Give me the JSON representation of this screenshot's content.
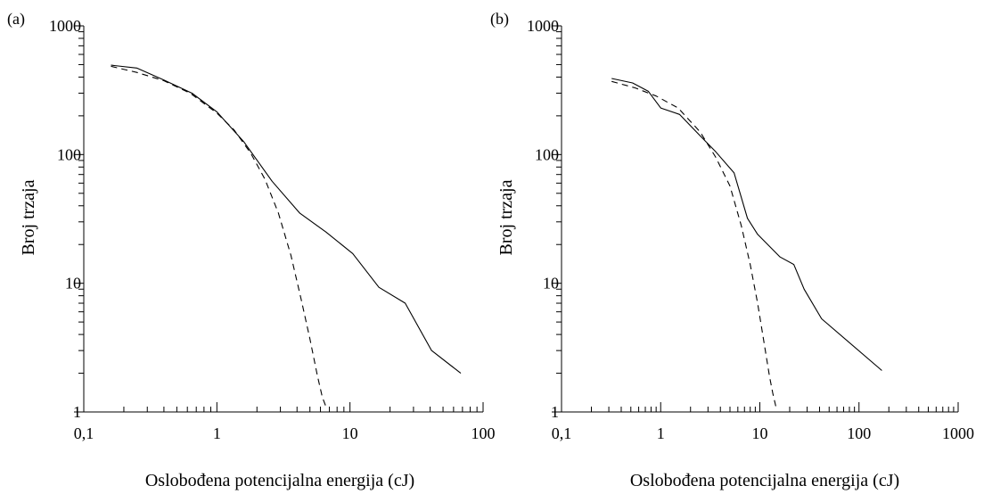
{
  "figure": {
    "ylabel": "Broj trzaja",
    "xlabel": "Oslobođena potencijalna energija (cJ)"
  },
  "colors": {
    "line": "#000000",
    "background": "#ffffff"
  },
  "chart_data": [
    {
      "type": "line",
      "panel_label": "(a)",
      "xlabel": "Oslobođena potencijalna energija (cJ)",
      "ylabel": "Broj trzaja",
      "xscale": "log",
      "yscale": "log",
      "xlim": [
        0.1,
        100
      ],
      "ylim": [
        1,
        1000
      ],
      "x_ticks": [
        0.1,
        1,
        10,
        100
      ],
      "x_tick_labels": [
        "0,1",
        "1",
        "10",
        "100"
      ],
      "y_ticks": [
        1,
        10,
        100,
        1000
      ],
      "y_tick_labels": [
        "1",
        "10",
        "100",
        "1000"
      ],
      "grid": false,
      "legend": "none",
      "series": [
        {
          "style": "solid",
          "x": [
            0.16,
            0.25,
            0.4,
            0.65,
            1.0,
            1.6,
            2.6,
            4.2,
            6.6,
            10.5,
            16.5,
            26,
            41,
            68
          ],
          "y": [
            495,
            470,
            380,
            300,
            215,
            125,
            62,
            35,
            25,
            17,
            9.3,
            7,
            3,
            2
          ]
        },
        {
          "style": "dashed",
          "x": [
            0.16,
            0.25,
            0.4,
            0.63,
            1.0,
            1.35,
            1.8,
            2.3,
            2.9,
            3.6,
            4.3,
            5.0,
            5.7,
            6.2,
            6.6
          ],
          "y": [
            485,
            435,
            375,
            300,
            210,
            155,
            102,
            64,
            35,
            16.5,
            7.5,
            3.7,
            1.9,
            1.3,
            1.1
          ]
        }
      ]
    },
    {
      "type": "line",
      "panel_label": "(b)",
      "xlabel": "Oslobođena potencijalna energija (cJ)",
      "ylabel": "Broj trzaja",
      "xscale": "log",
      "yscale": "log",
      "xlim": [
        0.1,
        1000
      ],
      "ylim": [
        1,
        1000
      ],
      "x_ticks": [
        0.1,
        1,
        10,
        100,
        1000
      ],
      "x_tick_labels": [
        "0,1",
        "1",
        "10",
        "100",
        "1000"
      ],
      "y_ticks": [
        1,
        10,
        100,
        1000
      ],
      "y_tick_labels": [
        "1",
        "10",
        "100",
        "1000"
      ],
      "grid": false,
      "legend": "none",
      "series": [
        {
          "style": "solid",
          "x": [
            0.32,
            0.52,
            0.75,
            1.0,
            1.55,
            2.5,
            3.6,
            5.5,
            7.5,
            9.5,
            16,
            22,
            28,
            42,
            170
          ],
          "y": [
            390,
            360,
            310,
            230,
            205,
            140,
            105,
            72,
            32,
            24,
            16,
            14,
            9,
            5.3,
            2.1
          ]
        },
        {
          "style": "dashed",
          "x": [
            0.32,
            0.55,
            0.9,
            1.5,
            2.5,
            3.6,
            5.0,
            6.5,
            8.0,
            9.5,
            11,
            12.5,
            13.5,
            14.5
          ],
          "y": [
            370,
            330,
            285,
            230,
            150,
            95,
            57,
            28,
            14,
            7,
            3.5,
            1.9,
            1.4,
            1.1
          ]
        }
      ]
    }
  ]
}
